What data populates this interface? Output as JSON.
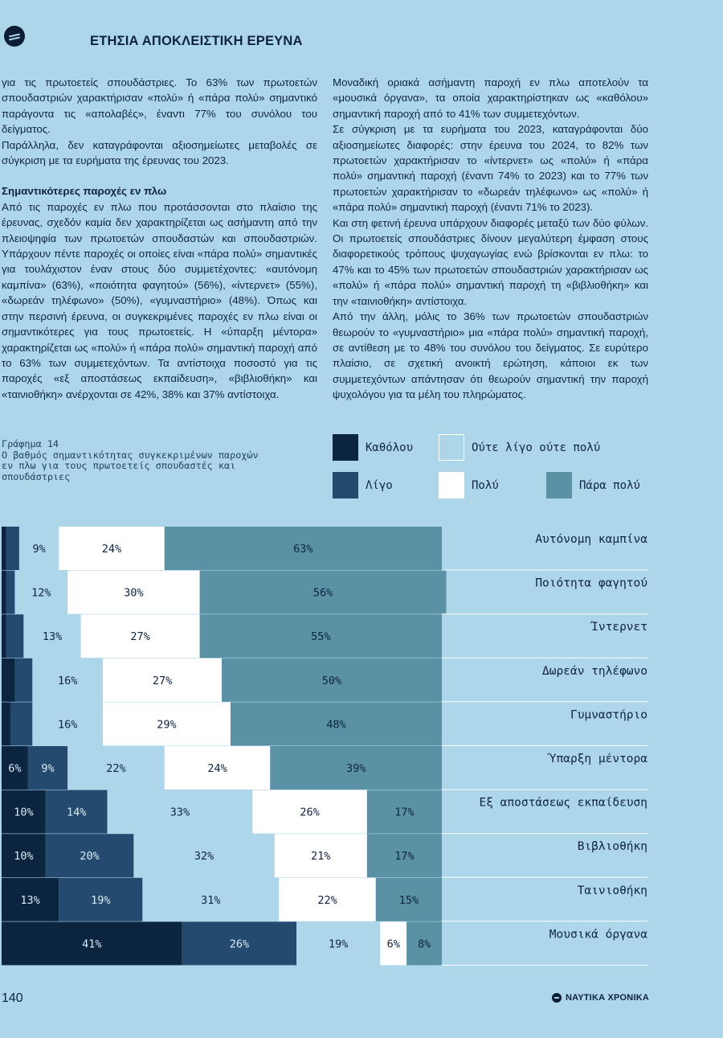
{
  "header": {
    "title": "ΕΤΗΣΙΑ ΑΠΟΚΛΕΙΣΤΙΚΗ ΕΡΕΥΝΑ",
    "logo_icon": "magazine-logo-icon"
  },
  "left_column": {
    "p1": "για τις πρωτοετείς σπουδάστριες. Το 63% των πρωτοετών σπουδαστριών χαρακτήρισαν «πολύ» ή «πάρα πολύ» σημαντικό παράγοντα τις «απολαβές», έναντι 77% του συνόλου του δείγματος.",
    "p2": "Παράλληλα, δεν καταγράφονται αξιοσημείωτες μεταβολές σε σύγκριση με τα ευρήματα της έρευνας του 2023.",
    "subheading": "Σημαντικότερες παροχές εν πλω",
    "p3": "Από τις παροχές εν πλω που προτάσσονται στο πλαίσιο της έρευνας, σχεδόν καμία δεν χαρακτηρίζεται ως ασήμαντη από την πλειοψηφία των πρωτοετών σπουδαστών και σπουδαστριών. Υπάρχουν πέντε παροχές οι οποίες είναι «πάρα πολύ» σημαντικές για τουλάχιστον έναν στους δύο συμμετέχοντες: «αυτόνομη καμπίνα» (63%), «ποιότητα φαγητού» (56%), «ίντερνετ» (55%), «δωρεάν τηλέφωνο» (50%), «γυμναστήριο» (48%). Όπως και στην περσινή έρευνα, οι συγκεκριμένες παροχές εν πλω είναι οι σημαντικότερες για τους πρωτοετείς. Η «ύπαρξη μέντορα» χαρακτηρίζεται ως «πολύ» ή «πάρα πολύ» σημαντική παροχή από το 63% των συμμετεχόντων. Τα αντίστοιχα ποσοστό για τις παροχές «εξ αποστάσεως εκπαίδευση», «βιβλιοθήκη» και «ταινιοθήκη» ανέρχονται σε 42%, 38% και 37% αντίστοιχα."
  },
  "right_column": {
    "p1": "Μοναδική οριακά ασήμαντη παροχή εν πλω αποτελούν τα «μουσικά όργανα», τα οποία χαρακτηρίστηκαν ως «καθόλου» σημαντική παροχή από το 41% των συμμετεχόντων.",
    "p2": "Σε σύγκριση με τα ευρήματα του 2023, καταγράφονται δύο αξιοσημείωτες διαφορές: στην έρευνα του 2024, το 82% των πρωτοετών χαρακτήρισαν το «ίντερνετ» ως «πολύ» ή «πάρα πολύ» σημαντική παροχή (έναντι 74% το 2023) και το 77% των πρωτοετών χαρακτήρισαν το «δωρεάν τηλέφωνο» ως «πολύ» ή «πάρα πολύ» σημαντική παροχή (έναντι 71% το 2023).",
    "p3": "Και στη φετινή έρευνα υπάρχουν διαφορές μεταξύ των δύο φύλων. Οι πρωτοετείς σπουδάστριες δίνουν μεγαλύτερη έμφαση στους διαφορετικούς τρόπους ψυχαγωγίας ενώ βρίσκονται εν πλω: το 47% και το 45% των πρωτοετών σπουδαστριών χαρακτήρισαν ως «πολύ» ή «πάρα πολύ» σημαντική παροχή τη «βιβλιοθήκη» και την «ταινιοθήκη» αντίστοιχα.",
    "p4": "Από την άλλη, μόλις το 36% των πρωτοετών σπουδαστριών θεωρούν το «γυμναστήριο» μια «πάρα πολύ» σημαντική παροχή, σε αντίθεση με το 48% του συνόλου του δείγματος. Σε ευρύτερο πλαίσιο, σε σχετική ανοικτή ερώτηση, κάποιοι εκ των συμμετεχόντων απάντησαν ότι θεωρούν σημαντική την παροχή ψυχολόγου για τα μέλη του πληρώματος."
  },
  "figure": {
    "caption_line1": "Γράφημα 14",
    "caption_line2": "Ο βαθμός σημαντικότητας συγκεκριμένων παροχών",
    "caption_line3": "εν πλω για τους πρωτοετείς σπουδαστές και",
    "caption_line4": "σπουδάστριες"
  },
  "chart_data": {
    "type": "bar",
    "orientation": "horizontal-stacked-100",
    "title": "Ο βαθμός σημαντικότητας συγκεκριμένων παροχών εν πλω για τους πρωτοετείς σπουδαστές και σπουδάστριες",
    "categories": [
      "Αυτόνομη καμπίνα",
      "Ποιότητα φαγητού",
      "Ίντερνετ",
      "Δωρεάν τηλέφωνο",
      "Γυμναστήριο",
      "Ύπαρξη μέντορα",
      "Εξ αποστάσεως εκπαίδευση",
      "Βιβλιοθήκη",
      "Ταινιοθήκη",
      "Μουσικά όργανα"
    ],
    "series": [
      {
        "name": "Καθόλου",
        "color": "#0b2540",
        "values": [
          1,
          1,
          1,
          3,
          2,
          6,
          10,
          10,
          13,
          41
        ]
      },
      {
        "name": "Λίγο",
        "color": "#244b6f",
        "values": [
          3,
          2,
          4,
          4,
          5,
          9,
          14,
          20,
          19,
          26
        ]
      },
      {
        "name": "Ούτε λίγο ούτε πολύ",
        "color": "#aed6ea",
        "values": [
          9,
          12,
          13,
          16,
          16,
          22,
          33,
          32,
          31,
          19
        ]
      },
      {
        "name": "Πολύ",
        "color": "#ffffff",
        "values": [
          24,
          30,
          27,
          27,
          29,
          24,
          26,
          21,
          22,
          6
        ]
      },
      {
        "name": "Πάρα πολύ",
        "color": "#5b91a5",
        "values": [
          63,
          56,
          55,
          50,
          48,
          39,
          17,
          17,
          15,
          8
        ]
      }
    ],
    "value_labels": [
      [
        "",
        "",
        "9%",
        "24%",
        "63%"
      ],
      [
        "",
        "",
        "12%",
        "30%",
        "56%"
      ],
      [
        "",
        "",
        "13%",
        "27%",
        "55%"
      ],
      [
        "",
        "",
        "16%",
        "27%",
        "50%"
      ],
      [
        "",
        "",
        "16%",
        "29%",
        "48%"
      ],
      [
        "6%",
        "9%",
        "22%",
        "24%",
        "39%"
      ],
      [
        "10%",
        "14%",
        "33%",
        "26%",
        "17%"
      ],
      [
        "10%",
        "20%",
        "32%",
        "21%",
        "17%"
      ],
      [
        "13%",
        "19%",
        "31%",
        "22%",
        "15%"
      ],
      [
        "41%",
        "26%",
        "19%",
        "6%",
        "8%"
      ]
    ],
    "xlim": [
      0,
      100
    ],
    "legend_position": "top"
  },
  "footer": {
    "page_number": "140",
    "brand": "ΝΑΥΤΙΚΑ ΧΡΟΝΙΚΑ"
  }
}
